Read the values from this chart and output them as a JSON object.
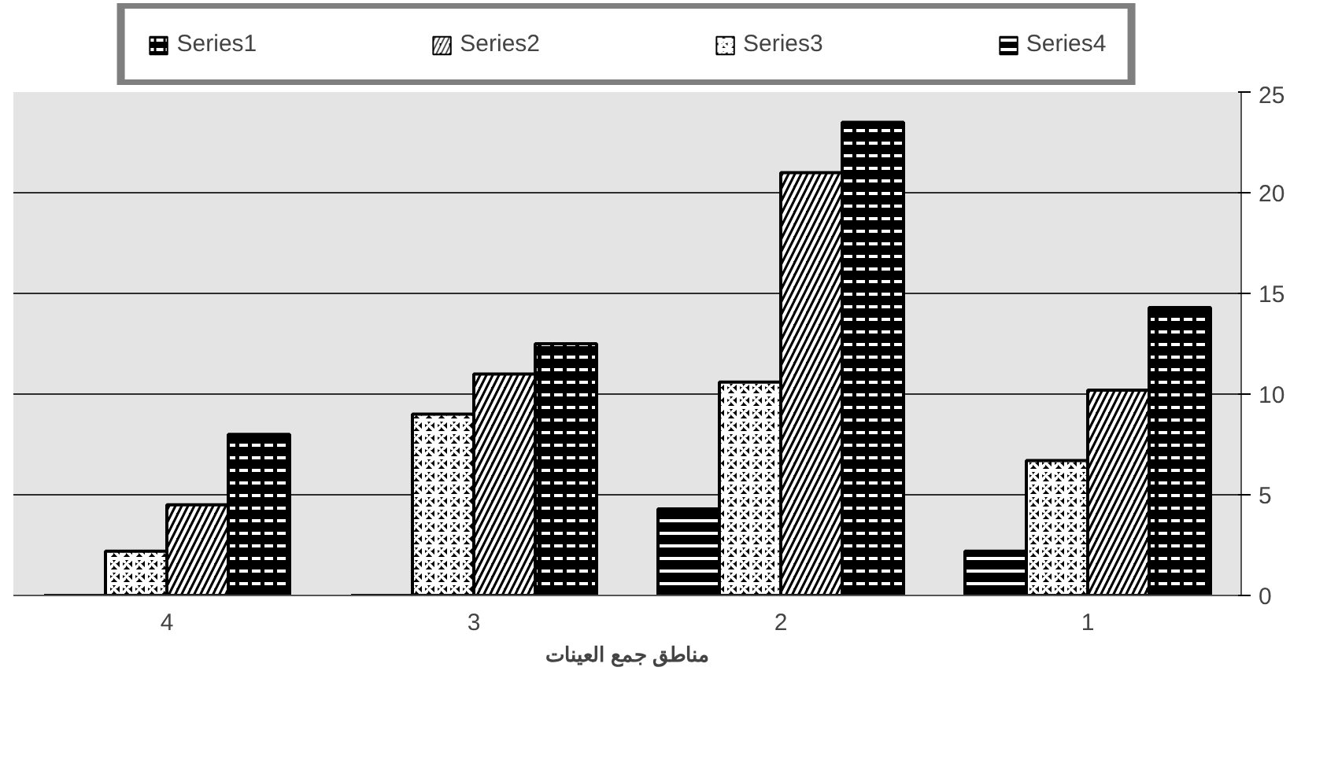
{
  "chart_data": {
    "type": "bar",
    "xlabel": "مناطق جمع العينات",
    "categories": [
      "4",
      "3",
      "2",
      "1"
    ],
    "series": [
      {
        "name": "Series1",
        "color": "#000000",
        "values": [
          8.0,
          12.5,
          23.5,
          14.3
        ]
      },
      {
        "name": "Series2",
        "color": "#000000",
        "values": [
          4.5,
          11.0,
          21.0,
          10.2
        ]
      },
      {
        "name": "Series3",
        "color": "#000000",
        "values": [
          2.2,
          9.0,
          10.6,
          6.7
        ]
      },
      {
        "name": "Series4",
        "color": "#000000",
        "values": [
          0,
          0,
          4.3,
          2.2
        ]
      }
    ],
    "ylim": [
      0,
      25
    ],
    "yticks": [
      0,
      5,
      10,
      15,
      20,
      25
    ],
    "grid": "y",
    "legend": "top"
  }
}
